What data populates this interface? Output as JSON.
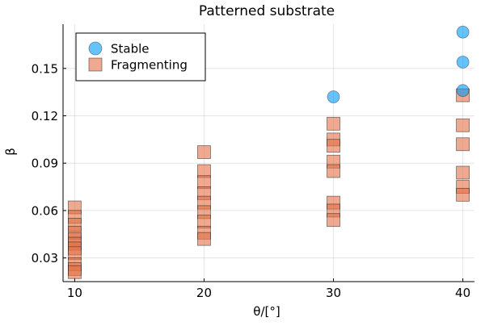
{
  "chart_data": {
    "type": "scatter",
    "title": "Patterned substrate",
    "xlabel": "θ/[°]",
    "ylabel": "β",
    "xlim": [
      9.1,
      40.9
    ],
    "ylim": [
      0.015,
      0.178
    ],
    "xticks": [
      10,
      20,
      30,
      40
    ],
    "xtick_labels": [
      "10",
      "20",
      "30",
      "40"
    ],
    "yticks": [
      0.03,
      0.06,
      0.09,
      0.12,
      0.15
    ],
    "ytick_labels": [
      "0.03",
      "0.06",
      "0.09",
      "0.12",
      "0.15"
    ],
    "grid": true,
    "legend_position": "top-left",
    "series": [
      {
        "name": "Fragmenting",
        "marker": "square",
        "color": "#e26f46",
        "points": [
          [
            10,
            0.062
          ],
          [
            10,
            0.056
          ],
          [
            10,
            0.051
          ],
          [
            10,
            0.046
          ],
          [
            10,
            0.042
          ],
          [
            10,
            0.039
          ],
          [
            10,
            0.036
          ],
          [
            10,
            0.033
          ],
          [
            10,
            0.026
          ],
          [
            10,
            0.023
          ],
          [
            10,
            0.021
          ],
          [
            20,
            0.097
          ],
          [
            20,
            0.085
          ],
          [
            20,
            0.078
          ],
          [
            20,
            0.071
          ],
          [
            20,
            0.065
          ],
          [
            20,
            0.059
          ],
          [
            20,
            0.053
          ],
          [
            20,
            0.046
          ],
          [
            20,
            0.042
          ],
          [
            30,
            0.115
          ],
          [
            30,
            0.105
          ],
          [
            30,
            0.101
          ],
          [
            30,
            0.091
          ],
          [
            30,
            0.085
          ],
          [
            30,
            0.065
          ],
          [
            30,
            0.06
          ],
          [
            30,
            0.054
          ],
          [
            40,
            0.133
          ],
          [
            40,
            0.114
          ],
          [
            40,
            0.102
          ],
          [
            40,
            0.084
          ],
          [
            40,
            0.075
          ],
          [
            40,
            0.07
          ]
        ]
      },
      {
        "name": "Stable",
        "marker": "circle",
        "color": "#009af9",
        "points": [
          [
            30,
            0.132
          ],
          [
            40,
            0.173
          ],
          [
            40,
            0.154
          ],
          [
            40,
            0.136
          ]
        ]
      }
    ]
  }
}
